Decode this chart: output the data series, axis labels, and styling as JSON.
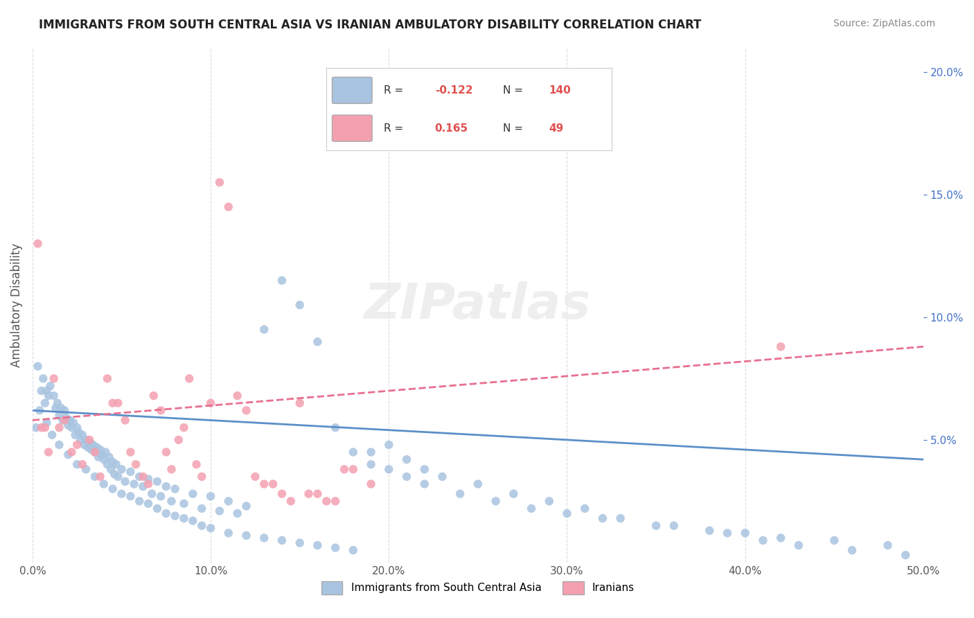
{
  "title": "IMMIGRANTS FROM SOUTH CENTRAL ASIA VS IRANIAN AMBULATORY DISABILITY CORRELATION CHART",
  "source": "Source: ZipAtlas.com",
  "xlabel": "",
  "ylabel": "Ambulatory Disability",
  "xlim": [
    0.0,
    0.5
  ],
  "ylim": [
    0.0,
    0.21
  ],
  "xticks": [
    0.0,
    0.1,
    0.2,
    0.3,
    0.4,
    0.5
  ],
  "xticklabels": [
    "0.0%",
    "10.0%",
    "20.0%",
    "30.0%",
    "40.0%",
    "50.0%"
  ],
  "yticks_right": [
    0.05,
    0.1,
    0.15,
    0.2
  ],
  "yticklabels_right": [
    "5.0%",
    "10.0%",
    "15.0%",
    "20.0%"
  ],
  "legend_blue_R": "-0.122",
  "legend_blue_N": "140",
  "legend_pink_R": "0.165",
  "legend_pink_N": "49",
  "blue_color": "#a8c4e0",
  "pink_color": "#f4a0b0",
  "blue_line_color": "#5b8fc9",
  "pink_line_color": "#e87090",
  "watermark": "ZIPatlas",
  "blue_scatter_x": [
    0.003,
    0.005,
    0.006,
    0.007,
    0.008,
    0.009,
    0.01,
    0.012,
    0.013,
    0.014,
    0.015,
    0.016,
    0.017,
    0.018,
    0.019,
    0.02,
    0.021,
    0.022,
    0.023,
    0.024,
    0.025,
    0.026,
    0.027,
    0.028,
    0.029,
    0.03,
    0.031,
    0.032,
    0.033,
    0.034,
    0.035,
    0.036,
    0.037,
    0.038,
    0.039,
    0.04,
    0.041,
    0.042,
    0.043,
    0.044,
    0.045,
    0.046,
    0.047,
    0.048,
    0.05,
    0.052,
    0.055,
    0.057,
    0.06,
    0.062,
    0.065,
    0.067,
    0.07,
    0.072,
    0.075,
    0.078,
    0.08,
    0.085,
    0.09,
    0.095,
    0.1,
    0.105,
    0.11,
    0.115,
    0.12,
    0.13,
    0.14,
    0.15,
    0.16,
    0.17,
    0.18,
    0.19,
    0.2,
    0.21,
    0.22,
    0.24,
    0.26,
    0.28,
    0.3,
    0.32,
    0.35,
    0.38,
    0.4,
    0.42,
    0.45,
    0.48,
    0.002,
    0.004,
    0.008,
    0.011,
    0.015,
    0.02,
    0.025,
    0.03,
    0.035,
    0.04,
    0.045,
    0.05,
    0.055,
    0.06,
    0.065,
    0.07,
    0.075,
    0.08,
    0.085,
    0.09,
    0.095,
    0.1,
    0.11,
    0.12,
    0.13,
    0.14,
    0.15,
    0.16,
    0.17,
    0.18,
    0.19,
    0.2,
    0.21,
    0.22,
    0.23,
    0.25,
    0.27,
    0.29,
    0.31,
    0.33,
    0.36,
    0.39,
    0.41,
    0.43,
    0.46,
    0.49
  ],
  "blue_scatter_y": [
    0.08,
    0.07,
    0.075,
    0.065,
    0.07,
    0.068,
    0.072,
    0.068,
    0.063,
    0.065,
    0.06,
    0.063,
    0.058,
    0.062,
    0.059,
    0.056,
    0.058,
    0.055,
    0.057,
    0.052,
    0.055,
    0.053,
    0.05,
    0.052,
    0.048,
    0.05,
    0.047,
    0.049,
    0.046,
    0.048,
    0.045,
    0.047,
    0.043,
    0.046,
    0.044,
    0.042,
    0.045,
    0.04,
    0.043,
    0.038,
    0.041,
    0.036,
    0.04,
    0.035,
    0.038,
    0.033,
    0.037,
    0.032,
    0.035,
    0.031,
    0.034,
    0.028,
    0.033,
    0.027,
    0.031,
    0.025,
    0.03,
    0.024,
    0.028,
    0.022,
    0.027,
    0.021,
    0.025,
    0.02,
    0.023,
    0.095,
    0.115,
    0.105,
    0.09,
    0.055,
    0.045,
    0.04,
    0.038,
    0.035,
    0.032,
    0.028,
    0.025,
    0.022,
    0.02,
    0.018,
    0.015,
    0.013,
    0.012,
    0.01,
    0.009,
    0.007,
    0.055,
    0.062,
    0.057,
    0.052,
    0.048,
    0.044,
    0.04,
    0.038,
    0.035,
    0.032,
    0.03,
    0.028,
    0.027,
    0.025,
    0.024,
    0.022,
    0.02,
    0.019,
    0.018,
    0.017,
    0.015,
    0.014,
    0.012,
    0.011,
    0.01,
    0.009,
    0.008,
    0.007,
    0.006,
    0.005,
    0.045,
    0.048,
    0.042,
    0.038,
    0.035,
    0.032,
    0.028,
    0.025,
    0.022,
    0.018,
    0.015,
    0.012,
    0.009,
    0.007,
    0.005,
    0.003
  ],
  "pink_scatter_x": [
    0.003,
    0.005,
    0.007,
    0.009,
    0.012,
    0.015,
    0.018,
    0.022,
    0.025,
    0.028,
    0.032,
    0.035,
    0.038,
    0.042,
    0.045,
    0.048,
    0.052,
    0.055,
    0.058,
    0.062,
    0.065,
    0.068,
    0.072,
    0.075,
    0.078,
    0.082,
    0.085,
    0.088,
    0.092,
    0.095,
    0.1,
    0.105,
    0.11,
    0.115,
    0.12,
    0.125,
    0.13,
    0.135,
    0.14,
    0.145,
    0.15,
    0.155,
    0.16,
    0.165,
    0.17,
    0.175,
    0.18,
    0.19,
    0.42
  ],
  "pink_scatter_y": [
    0.13,
    0.055,
    0.055,
    0.045,
    0.075,
    0.055,
    0.058,
    0.045,
    0.048,
    0.04,
    0.05,
    0.045,
    0.035,
    0.075,
    0.065,
    0.065,
    0.058,
    0.045,
    0.04,
    0.035,
    0.032,
    0.068,
    0.062,
    0.045,
    0.038,
    0.05,
    0.055,
    0.075,
    0.04,
    0.035,
    0.065,
    0.155,
    0.145,
    0.068,
    0.062,
    0.035,
    0.032,
    0.032,
    0.028,
    0.025,
    0.065,
    0.028,
    0.028,
    0.025,
    0.025,
    0.038,
    0.038,
    0.032,
    0.088
  ],
  "blue_trend_x": [
    0.0,
    0.5
  ],
  "blue_trend_y": [
    0.062,
    0.042
  ],
  "pink_trend_x": [
    0.0,
    0.5
  ],
  "pink_trend_y": [
    0.058,
    0.088
  ]
}
